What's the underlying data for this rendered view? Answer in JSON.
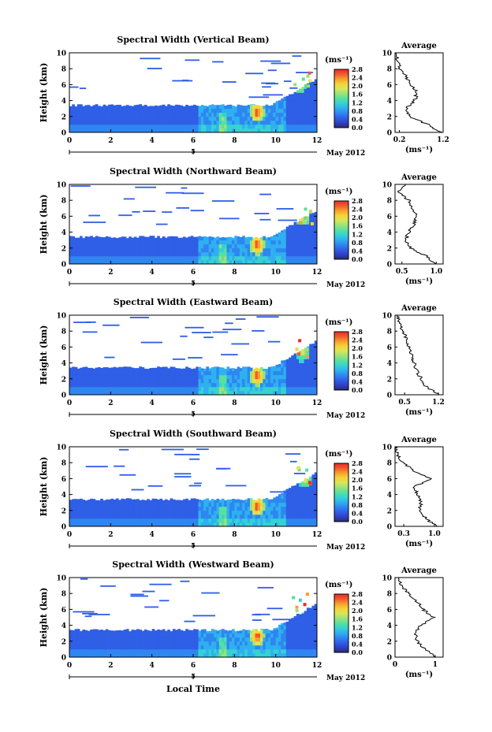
{
  "figure": {
    "xlabel": "Local Time",
    "date_label": "May 2012",
    "date_tick_label": "5",
    "colorbar_unit": "(ms⁻¹)",
    "avg_title": "Average",
    "avg_xlabel": "(ms⁻¹)",
    "ylabel": "Height (km)"
  },
  "colorbar": {
    "ticks": [
      "2.8",
      "2.4",
      "2.0",
      "1.6",
      "1.2",
      "0.8",
      "0.4",
      "0.0"
    ],
    "colors": [
      "#2b2b6b",
      "#2f40c8",
      "#2f5fe6",
      "#2f86f0",
      "#2fb0f0",
      "#36d2d2",
      "#58e0a0",
      "#9ae27a",
      "#d6e85a",
      "#f7d23a",
      "#f7a02e",
      "#f25a2a",
      "#e82a2a"
    ]
  },
  "chart_data": [
    {
      "type": "heatmap",
      "title": "Spectral Width (Vertical Beam)",
      "x_ticks": [
        0,
        2,
        4,
        6,
        8,
        10,
        12
      ],
      "xlim": [
        0,
        12
      ],
      "y_ticks": [
        0,
        2,
        4,
        6,
        8,
        10
      ],
      "ylim": [
        0,
        10
      ],
      "zlim": [
        0.0,
        2.8
      ],
      "hotspots": [
        {
          "x": 9.1,
          "y": 2.3,
          "value": 2.8
        },
        {
          "x": 11.2,
          "y": 6.0,
          "value": 2.2
        }
      ],
      "average_profile": {
        "xlim": [
          0.1,
          1.2
        ],
        "x_ticks": [
          0.2,
          1.2
        ],
        "x_tick_labels": [
          "0.2",
          "1.2"
        ],
        "height": [
          0.0,
          1.0,
          2.0,
          3.0,
          4.0,
          5.0,
          6.0,
          7.0,
          8.0,
          9.0,
          10.0
        ],
        "value": [
          1.15,
          0.85,
          0.42,
          0.35,
          0.55,
          0.6,
          0.48,
          0.35,
          0.22,
          0.15,
          0.12
        ]
      }
    },
    {
      "type": "heatmap",
      "title": "Spectral Width (Northward Beam)",
      "x_ticks": [
        0,
        2,
        4,
        6,
        8,
        10,
        12
      ],
      "xlim": [
        0,
        12
      ],
      "y_ticks": [
        0,
        2,
        4,
        6,
        8,
        10
      ],
      "ylim": [
        0,
        10
      ],
      "zlim": [
        0.0,
        2.8
      ],
      "hotspots": [
        {
          "x": 9.1,
          "y": 2.2,
          "value": 2.8
        },
        {
          "x": 11.3,
          "y": 5.8,
          "value": 2.4
        }
      ],
      "average_profile": {
        "xlim": [
          0.4,
          1.1
        ],
        "x_ticks": [
          0.5,
          1.0
        ],
        "x_tick_labels": [
          "0.5",
          "1.0"
        ],
        "height": [
          0.0,
          1.0,
          2.0,
          3.0,
          4.0,
          5.0,
          6.0,
          7.0,
          8.0,
          9.0,
          10.0
        ],
        "value": [
          1.0,
          0.85,
          0.62,
          0.55,
          0.6,
          0.68,
          0.72,
          0.65,
          0.6,
          0.45,
          0.55
        ]
      }
    },
    {
      "type": "heatmap",
      "title": "Spectral Width (Eastward Beam)",
      "x_ticks": [
        0,
        2,
        4,
        6,
        8,
        10,
        12
      ],
      "xlim": [
        0,
        12
      ],
      "y_ticks": [
        0,
        2,
        4,
        6,
        8,
        10
      ],
      "ylim": [
        0,
        10
      ],
      "zlim": [
        0.0,
        2.8
      ],
      "hotspots": [
        {
          "x": 9.1,
          "y": 2.2,
          "value": 2.8
        },
        {
          "x": 11.3,
          "y": 5.2,
          "value": 2.0
        }
      ],
      "average_profile": {
        "xlim": [
          0.3,
          1.3
        ],
        "x_ticks": [
          0.5,
          1.2
        ],
        "x_tick_labels": [
          "0.5",
          "1.2"
        ],
        "height": [
          0.0,
          1.0,
          2.0,
          3.0,
          4.0,
          5.0,
          6.0,
          7.0,
          8.0,
          9.0,
          10.0
        ],
        "value": [
          1.2,
          0.95,
          0.85,
          0.75,
          0.7,
          0.65,
          0.6,
          0.55,
          0.45,
          0.4,
          0.35
        ]
      }
    },
    {
      "type": "heatmap",
      "title": "Spectral Width (Southward Beam)",
      "x_ticks": [
        0,
        2,
        4,
        6,
        8,
        10,
        12
      ],
      "xlim": [
        0,
        12
      ],
      "y_ticks": [
        0,
        2,
        4,
        6,
        8,
        10
      ],
      "ylim": [
        0,
        10
      ],
      "zlim": [
        0.0,
        2.8
      ],
      "hotspots": [
        {
          "x": 9.1,
          "y": 2.3,
          "value": 2.8
        },
        {
          "x": 11.4,
          "y": 6.0,
          "value": 2.2
        }
      ],
      "average_profile": {
        "xlim": [
          0.1,
          1.2
        ],
        "x_ticks": [
          0.3,
          1.0
        ],
        "x_tick_labels": [
          "0.3",
          "1.0"
        ],
        "height": [
          0.0,
          1.0,
          2.0,
          3.0,
          4.0,
          5.0,
          6.0,
          7.0,
          8.0,
          9.0,
          10.0
        ],
        "value": [
          1.05,
          0.8,
          0.65,
          0.7,
          0.6,
          0.55,
          0.95,
          0.5,
          0.3,
          0.15,
          0.1
        ]
      }
    },
    {
      "type": "heatmap",
      "title": "Spectral Width (Westward Beam)",
      "x_ticks": [
        0,
        2,
        4,
        6,
        8,
        10,
        12
      ],
      "xlim": [
        0,
        12
      ],
      "y_ticks": [
        0,
        2,
        4,
        6,
        8,
        10
      ],
      "ylim": [
        0,
        10
      ],
      "zlim": [
        0.0,
        2.8
      ],
      "hotspots": [
        {
          "x": 9.1,
          "y": 2.4,
          "value": 2.8
        },
        {
          "x": 11.1,
          "y": 6.5,
          "value": 2.4
        }
      ],
      "average_profile": {
        "xlim": [
          0.0,
          1.2
        ],
        "x_ticks": [
          0.0,
          1.0
        ],
        "x_tick_labels": [
          "0",
          "1"
        ],
        "height": [
          0.0,
          1.0,
          2.0,
          3.0,
          4.0,
          5.0,
          6.0,
          7.0,
          8.0,
          9.0,
          10.0
        ],
        "value": [
          1.0,
          0.75,
          0.55,
          0.5,
          0.65,
          0.95,
          0.7,
          0.55,
          0.35,
          0.15,
          0.1
        ]
      }
    }
  ]
}
